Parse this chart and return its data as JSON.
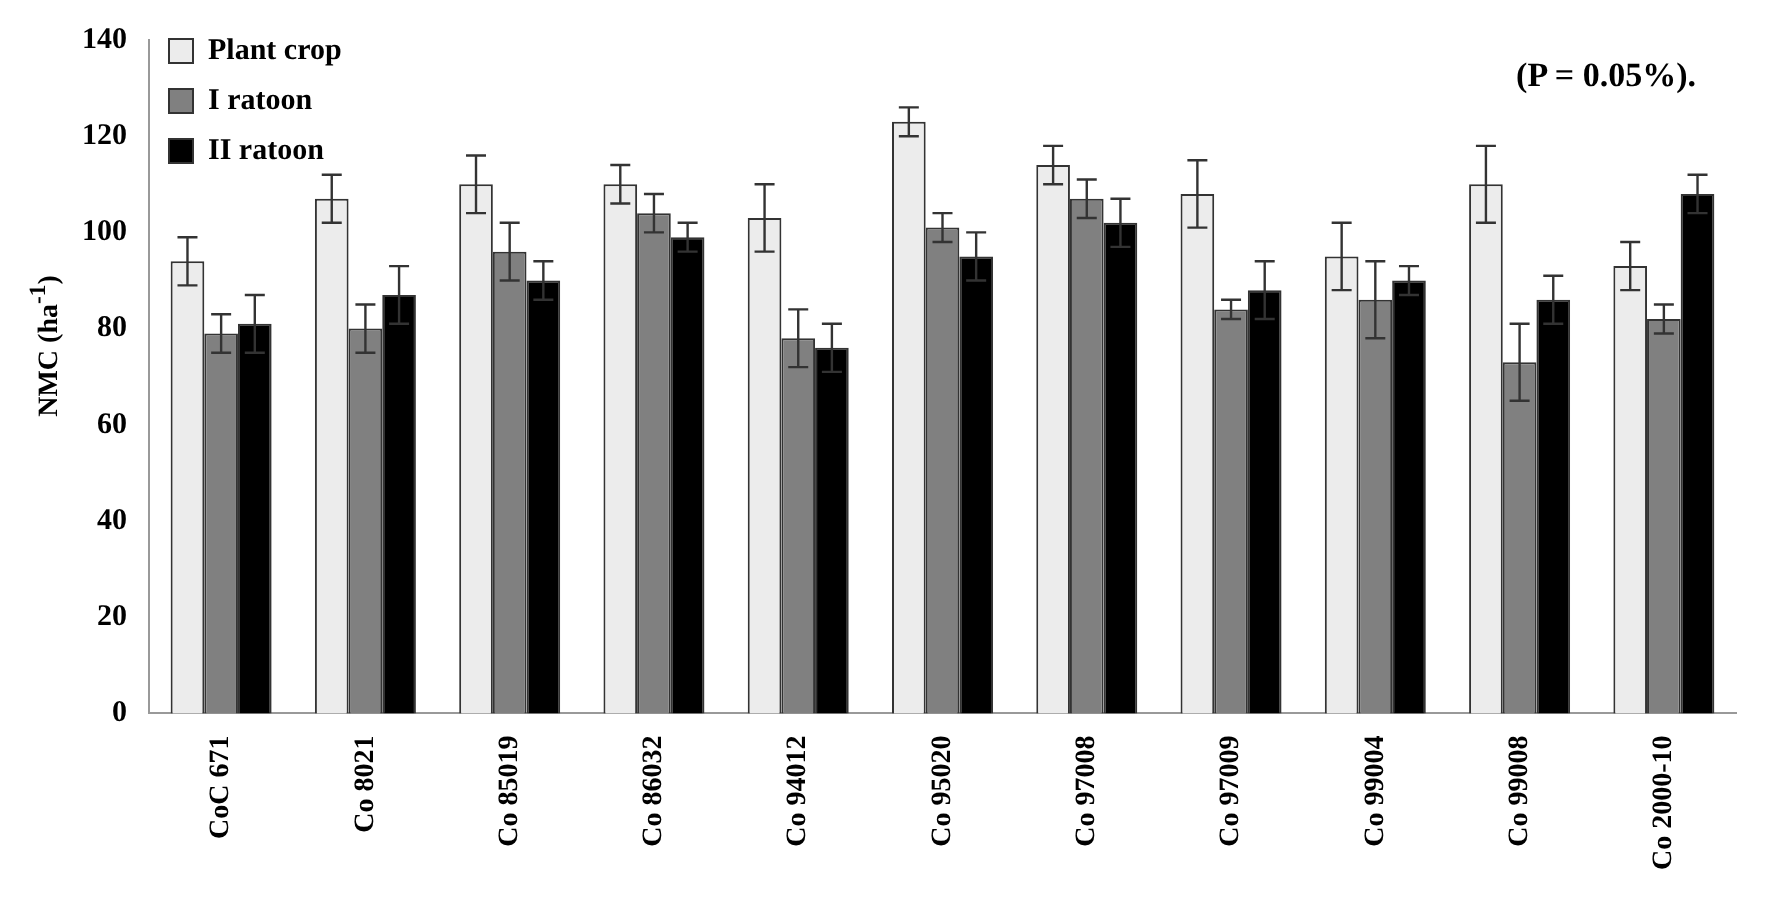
{
  "chart_data": {
    "type": "bar",
    "ylabel": "NMC (ha$^{-1}$)",
    "annotations": [
      "(P = 0.05%)."
    ],
    "categories": [
      "CoC 671",
      "Co 8021",
      "Co 85019",
      "Co 86032",
      "Co 94012",
      "Co 95020",
      "Co 97008",
      "Co 97009",
      "Co 99004",
      "Co 99008",
      "Co 2000-10"
    ],
    "series": [
      {
        "name": "Plant crop",
        "color": "#ececec",
        "values": [
          94,
          107,
          110,
          110,
          103,
          123,
          114,
          108,
          95,
          110,
          93
        ],
        "errors": [
          5,
          5,
          6,
          4,
          7,
          3,
          4,
          7,
          7,
          8,
          5
        ]
      },
      {
        "name": "I ratoon",
        "color": "#808080",
        "values": [
          79,
          80,
          96,
          104,
          78,
          101,
          107,
          84,
          86,
          73,
          82
        ],
        "errors": [
          4,
          5,
          6,
          4,
          6,
          3,
          4,
          2,
          8,
          8,
          3
        ]
      },
      {
        "name": "II ratoon",
        "color": "#000000",
        "values": [
          81,
          87,
          90,
          99,
          76,
          95,
          102,
          88,
          90,
          86,
          108
        ],
        "errors": [
          6,
          6,
          4,
          3,
          5,
          5,
          5,
          6,
          3,
          5,
          4
        ]
      }
    ],
    "ylim": [
      0,
      140
    ],
    "yticks": [
      0,
      20,
      40,
      60,
      80,
      100,
      120,
      140
    ],
    "grid": false,
    "legend": "top left"
  }
}
